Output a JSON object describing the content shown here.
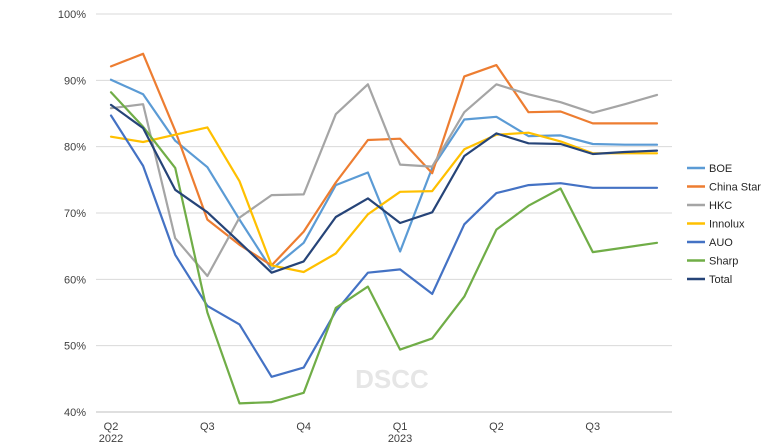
{
  "chart_data": {
    "type": "line",
    "title": "",
    "xlabel": "",
    "ylabel": "",
    "ylim": [
      40,
      100
    ],
    "y_ticks": [
      40,
      50,
      60,
      70,
      80,
      90,
      100
    ],
    "y_tick_suffix": "%",
    "grid": "horizontal",
    "legend_position": "right",
    "watermark": "DSCC",
    "x_tick_labels": [
      {
        "index": 0,
        "lines": [
          "Q2",
          "2022"
        ]
      },
      {
        "index": 3,
        "lines": [
          "Q3"
        ]
      },
      {
        "index": 6,
        "lines": [
          "Q4"
        ]
      },
      {
        "index": 9,
        "lines": [
          "Q1",
          "2023"
        ]
      },
      {
        "index": 12,
        "lines": [
          "Q2"
        ]
      },
      {
        "index": 15,
        "lines": [
          "Q3"
        ]
      }
    ],
    "x": [
      1,
      2,
      3,
      4,
      5,
      6,
      7,
      8,
      9,
      10,
      11,
      12,
      13,
      14,
      15,
      16,
      17,
      18
    ],
    "series": [
      {
        "name": "BOE",
        "color": "#5b9bd5",
        "values": [
          90.1,
          87.9,
          80.9,
          76.9,
          69.0,
          61.5,
          65.5,
          74.2,
          76.1,
          64.2,
          76.8,
          84.1,
          84.5,
          81.6,
          81.7,
          80.4,
          80.3,
          80.3
        ]
      },
      {
        "name": "China Star",
        "color": "#ed7d31",
        "values": [
          92.1,
          94.0,
          82.4,
          69.0,
          65.2,
          62.1,
          67.2,
          74.6,
          81.0,
          81.2,
          76.0,
          90.6,
          92.3,
          85.2,
          85.3,
          83.5,
          83.5,
          83.5
        ]
      },
      {
        "name": "HKC",
        "color": "#a5a5a5",
        "values": [
          85.8,
          86.4,
          66.2,
          60.5,
          69.3,
          72.7,
          72.8,
          84.9,
          89.4,
          77.3,
          77.0,
          85.2,
          89.4,
          87.9,
          86.7,
          85.1,
          86.4,
          87.8
        ]
      },
      {
        "name": "Innolux",
        "color": "#ffc000",
        "values": [
          81.5,
          80.7,
          81.8,
          82.9,
          74.8,
          62.1,
          61.1,
          63.9,
          69.8,
          73.2,
          73.3,
          79.6,
          81.8,
          82.1,
          80.8,
          79.0,
          79.0,
          79.0
        ]
      },
      {
        "name": "AUO",
        "color": "#4472c4",
        "values": [
          84.7,
          77.1,
          63.7,
          56.0,
          53.2,
          45.3,
          46.7,
          55.2,
          61.0,
          61.5,
          57.8,
          68.3,
          73.0,
          74.2,
          74.5,
          73.8,
          73.8,
          73.8
        ]
      },
      {
        "name": "Sharp",
        "color": "#70ad47",
        "values": [
          88.2,
          83.0,
          76.8,
          55.0,
          41.3,
          41.5,
          42.9,
          55.7,
          58.9,
          49.4,
          51.1,
          57.4,
          67.5,
          71.1,
          73.7,
          64.1,
          64.8,
          65.5
        ]
      },
      {
        "name": "Total",
        "color": "#264478",
        "values": [
          86.3,
          82.8,
          73.5,
          70.1,
          65.6,
          61.0,
          62.7,
          69.4,
          72.2,
          68.5,
          70.1,
          78.6,
          82.0,
          80.5,
          80.4,
          78.9,
          79.2,
          79.4
        ]
      }
    ]
  }
}
